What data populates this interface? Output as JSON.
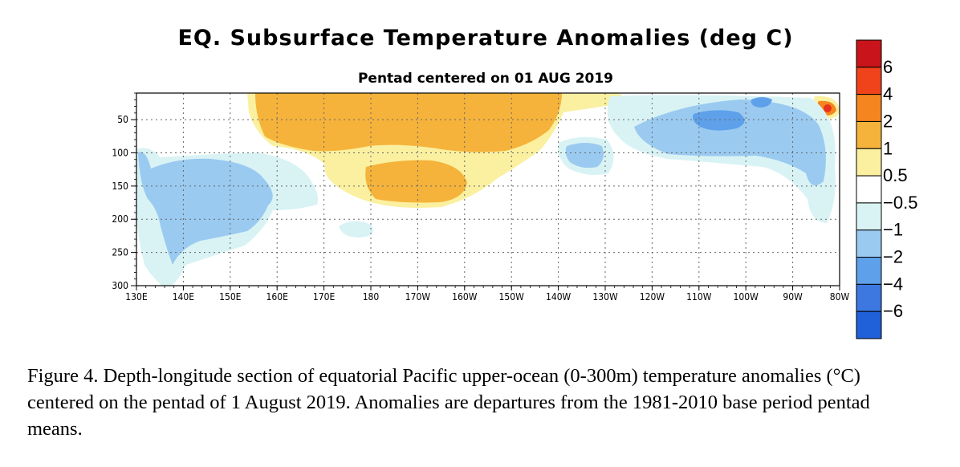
{
  "chart_data": {
    "type": "heatmap",
    "title": "EQ. Subsurface Temperature Anomalies (deg C)",
    "subtitle": "Pentad centered on 01 AUG 2019",
    "xlabel": "",
    "ylabel": "",
    "x_ticks": [
      "130E",
      "140E",
      "150E",
      "160E",
      "170E",
      "180",
      "170W",
      "160W",
      "150W",
      "140W",
      "130W",
      "120W",
      "110W",
      "100W",
      "90W",
      "80W"
    ],
    "y_ticks": [
      "50",
      "100",
      "150",
      "200",
      "250",
      "300"
    ],
    "xlim": [
      "130E",
      "80W"
    ],
    "ylim": [
      300,
      10
    ],
    "grid": true,
    "colorbar": {
      "labels": [
        "6",
        "4",
        "2",
        "1",
        "0.5",
        "−0.5",
        "−1",
        "−2",
        "−4",
        "−6"
      ],
      "colors": [
        "#c8141a",
        "#f0421b",
        "#f5861f",
        "#f5b33b",
        "#faf0a0",
        "#ffffff",
        "#d9f3f5",
        "#9bcaf0",
        "#5ea0ea",
        "#3c78e0",
        "#2060d8"
      ]
    },
    "features": [
      {
        "sign": "positive",
        "max_anomaly": 2,
        "depth_range_m": [
          10,
          80
        ],
        "lon_range": [
          "165E",
          "140W"
        ]
      },
      {
        "sign": "positive",
        "max_anomaly": 2,
        "depth_range_m": [
          100,
          170
        ],
        "lon_range": [
          "175E",
          "158W"
        ]
      },
      {
        "sign": "positive",
        "max_anomaly": 6,
        "depth_range_m": [
          20,
          50
        ],
        "lon_range": [
          "85W",
          "80W"
        ]
      },
      {
        "sign": "negative",
        "max_anomaly": -2,
        "depth_range_m": [
          30,
          100
        ],
        "lon_range": [
          "120W",
          "85W"
        ]
      },
      {
        "sign": "negative",
        "max_anomaly": -1,
        "depth_range_m": [
          80,
          320
        ],
        "lon_range": [
          "131E",
          "158E"
        ]
      },
      {
        "sign": "negative",
        "max_anomaly": -1,
        "depth_range_m": [
          70,
          130
        ],
        "lon_range": [
          "140W",
          "125W"
        ]
      }
    ]
  },
  "caption": "Figure 4. Depth-longitude section of equatorial Pacific upper-ocean (0-300m) temperature anomalies (°C) centered on the pentad of 1 August 2019. Anomalies are departures from the 1981-2010 base period pentad means."
}
